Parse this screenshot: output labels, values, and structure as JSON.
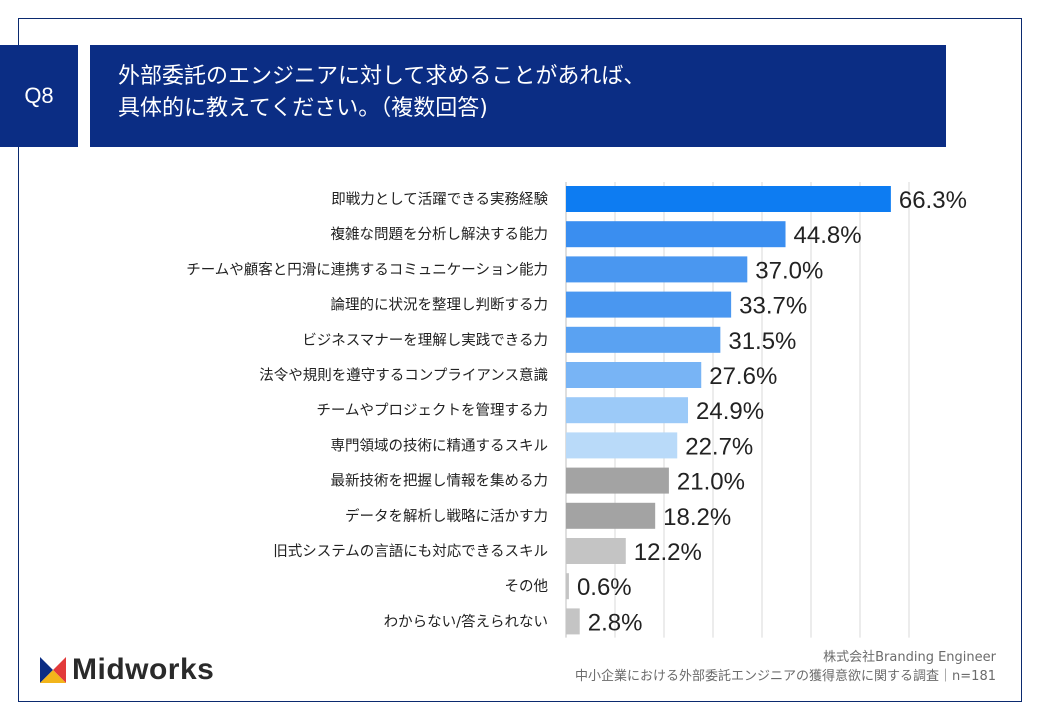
{
  "question": {
    "badge": "Q8",
    "title_line1": "外部委託のエンジニアに対して求めることがあれば、",
    "title_line2": "具体的に教えてください。（複数回答)"
  },
  "chart_data": {
    "type": "bar",
    "orientation": "horizontal",
    "categories": [
      "即戦力として活躍できる実務経験",
      "複雑な問題を分析し解決する能力",
      "チームや顧客と円滑に連携するコミュニケーション能力",
      "論理的に状況を整理し判断する力",
      "ビジネスマナーを理解し実践できる力",
      "法令や規則を遵守するコンプライアンス意識",
      "チームやプロジェクトを管理する力",
      "専門領域の技術に精通するスキル",
      "最新技術を把握し情報を集める力",
      "データを解析し戦略に活かす力",
      "旧式システムの言語にも対応できるスキル",
      "その他",
      "わからない/答えられない"
    ],
    "values": [
      66.3,
      44.8,
      37.0,
      33.7,
      31.5,
      27.6,
      24.9,
      22.7,
      21.0,
      18.2,
      12.2,
      0.6,
      2.8
    ],
    "value_labels": [
      "66.3%",
      "44.8%",
      "37.0%",
      "33.7%",
      "31.5%",
      "27.6%",
      "24.9%",
      "22.7%",
      "21.0%",
      "18.2%",
      "12.2%",
      "0.6%",
      "2.8%"
    ],
    "colors": [
      "#0d7cf2",
      "#3a8ef0",
      "#4a97f0",
      "#4a97f0",
      "#5aa2f2",
      "#78b4f5",
      "#9ccaf8",
      "#b9daf9",
      "#a3a3a3",
      "#a3a3a3",
      "#c4c4c4",
      "#c4c4c4",
      "#c4c4c4"
    ],
    "xlim": [
      0,
      70
    ],
    "grid": true,
    "grid_step": 10,
    "xlabel": "",
    "ylabel": ""
  },
  "footer": {
    "source_company": "株式会社Branding Engineer",
    "source_survey": "中小企業における外部委託エンジニアの獲得意欲に関する調査｜n=181"
  },
  "logo": {
    "text": "Midworks",
    "mark_colors": [
      "#0b2d84",
      "#e23a3a",
      "#f2b51b"
    ]
  }
}
